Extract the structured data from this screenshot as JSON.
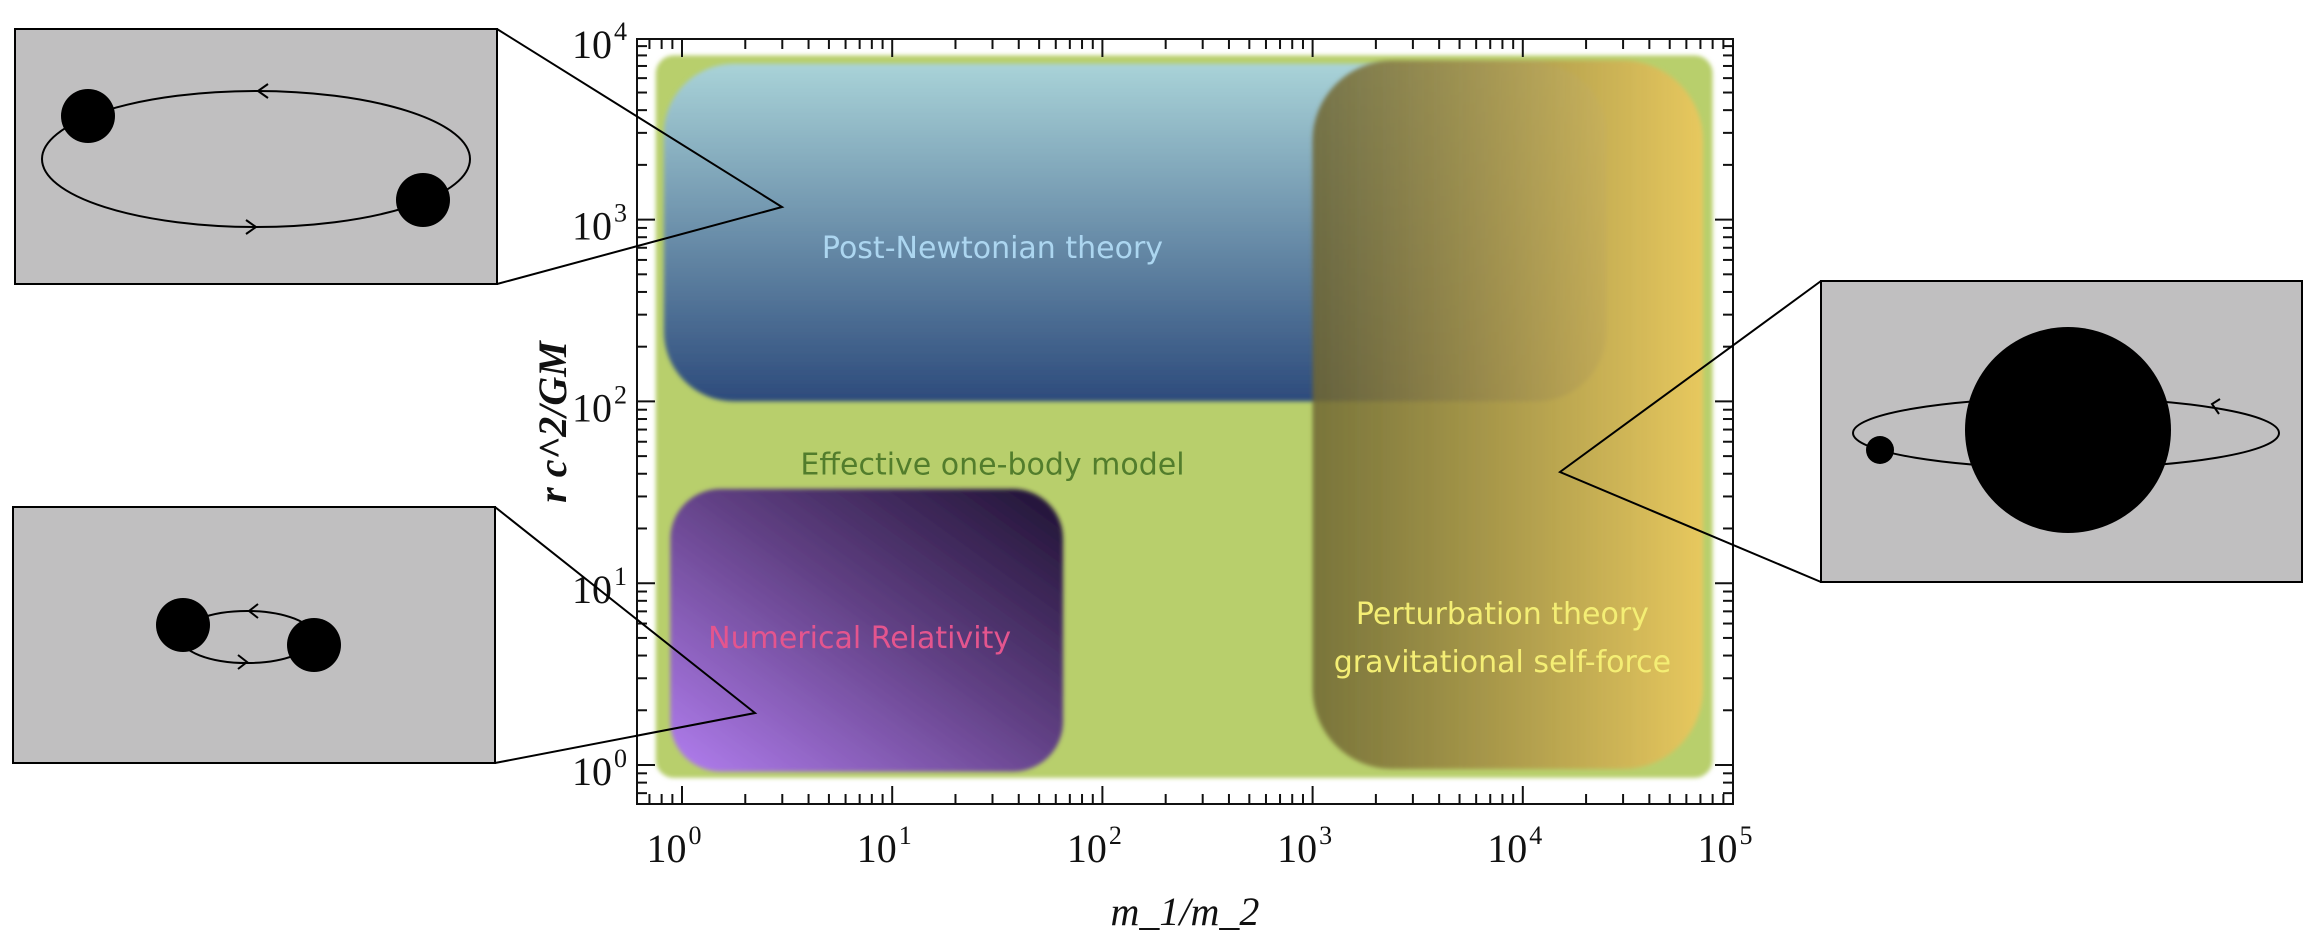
{
  "chart_data": {
    "type": "diagram",
    "xlabel": "m_1/m_2",
    "ylabel": "r c^2/GM",
    "xscale": "log",
    "yscale": "log",
    "xlim": [
      0.6,
      100000
    ],
    "ylim": [
      0.7,
      10000
    ],
    "x_ticks": [
      {
        "value": 1,
        "base": "10",
        "exp": "0"
      },
      {
        "value": 10,
        "base": "10",
        "exp": "1"
      },
      {
        "value": 100,
        "base": "10",
        "exp": "2"
      },
      {
        "value": 1000,
        "base": "10",
        "exp": "3"
      },
      {
        "value": 10000,
        "base": "10",
        "exp": "4"
      },
      {
        "value": 100000,
        "base": "10",
        "exp": "5"
      }
    ],
    "y_ticks": [
      {
        "value": 1,
        "base": "10",
        "exp": "0"
      },
      {
        "value": 10,
        "base": "10",
        "exp": "1"
      },
      {
        "value": 100,
        "base": "10",
        "exp": "2"
      },
      {
        "value": 1000,
        "base": "10",
        "exp": "3"
      },
      {
        "value": 10000,
        "base": "10",
        "exp": "4"
      }
    ],
    "regions": [
      {
        "id": "eob",
        "label": [
          "Effective one-body model"
        ],
        "x": [
          0.75,
          80000
        ],
        "y": [
          0.85,
          8000
        ],
        "color": "#b8cf6c",
        "text_color": "#527d2c",
        "label_at": [
          30,
          45
        ]
      },
      {
        "id": "pn",
        "label": [
          "Post-Newtonian theory"
        ],
        "x": [
          0.82,
          25000
        ],
        "y": [
          100,
          7200
        ],
        "color": "#2d4b7c",
        "color_top": "#a9d3d8",
        "text_color": "#acd6f0",
        "label_at": [
          30,
          700
        ]
      },
      {
        "id": "nr",
        "label": [
          "Numerical Relativity"
        ],
        "x": [
          0.88,
          65
        ],
        "y": [
          0.92,
          33
        ],
        "color": "#1e1232",
        "color_bottom": "#b27ef0",
        "text_color": "#e4558e",
        "label_at": [
          7,
          5
        ]
      },
      {
        "id": "pt",
        "label": [
          "Perturbation theory",
          "gravitational self-force"
        ],
        "x": [
          1000,
          72000
        ],
        "y": [
          0.95,
          7500
        ],
        "color": "#e9c85e",
        "color_left": "#6e6532",
        "text_color": "#f4ee74",
        "label_at": [
          8000,
          5
        ]
      }
    ],
    "insets": [
      {
        "id": "comparable-mass-wide",
        "description_icon": "wide-binary-orbit-icon",
        "points_to": [
          3,
          1200
        ]
      },
      {
        "id": "comparable-mass-close",
        "description_icon": "close-binary-orbit-icon",
        "points_to": [
          2.2,
          1.9
        ]
      },
      {
        "id": "extreme-mass-ratio",
        "description_icon": "extreme-mass-ratio-orbit-icon",
        "points_to": [
          15000,
          40
        ]
      }
    ]
  }
}
